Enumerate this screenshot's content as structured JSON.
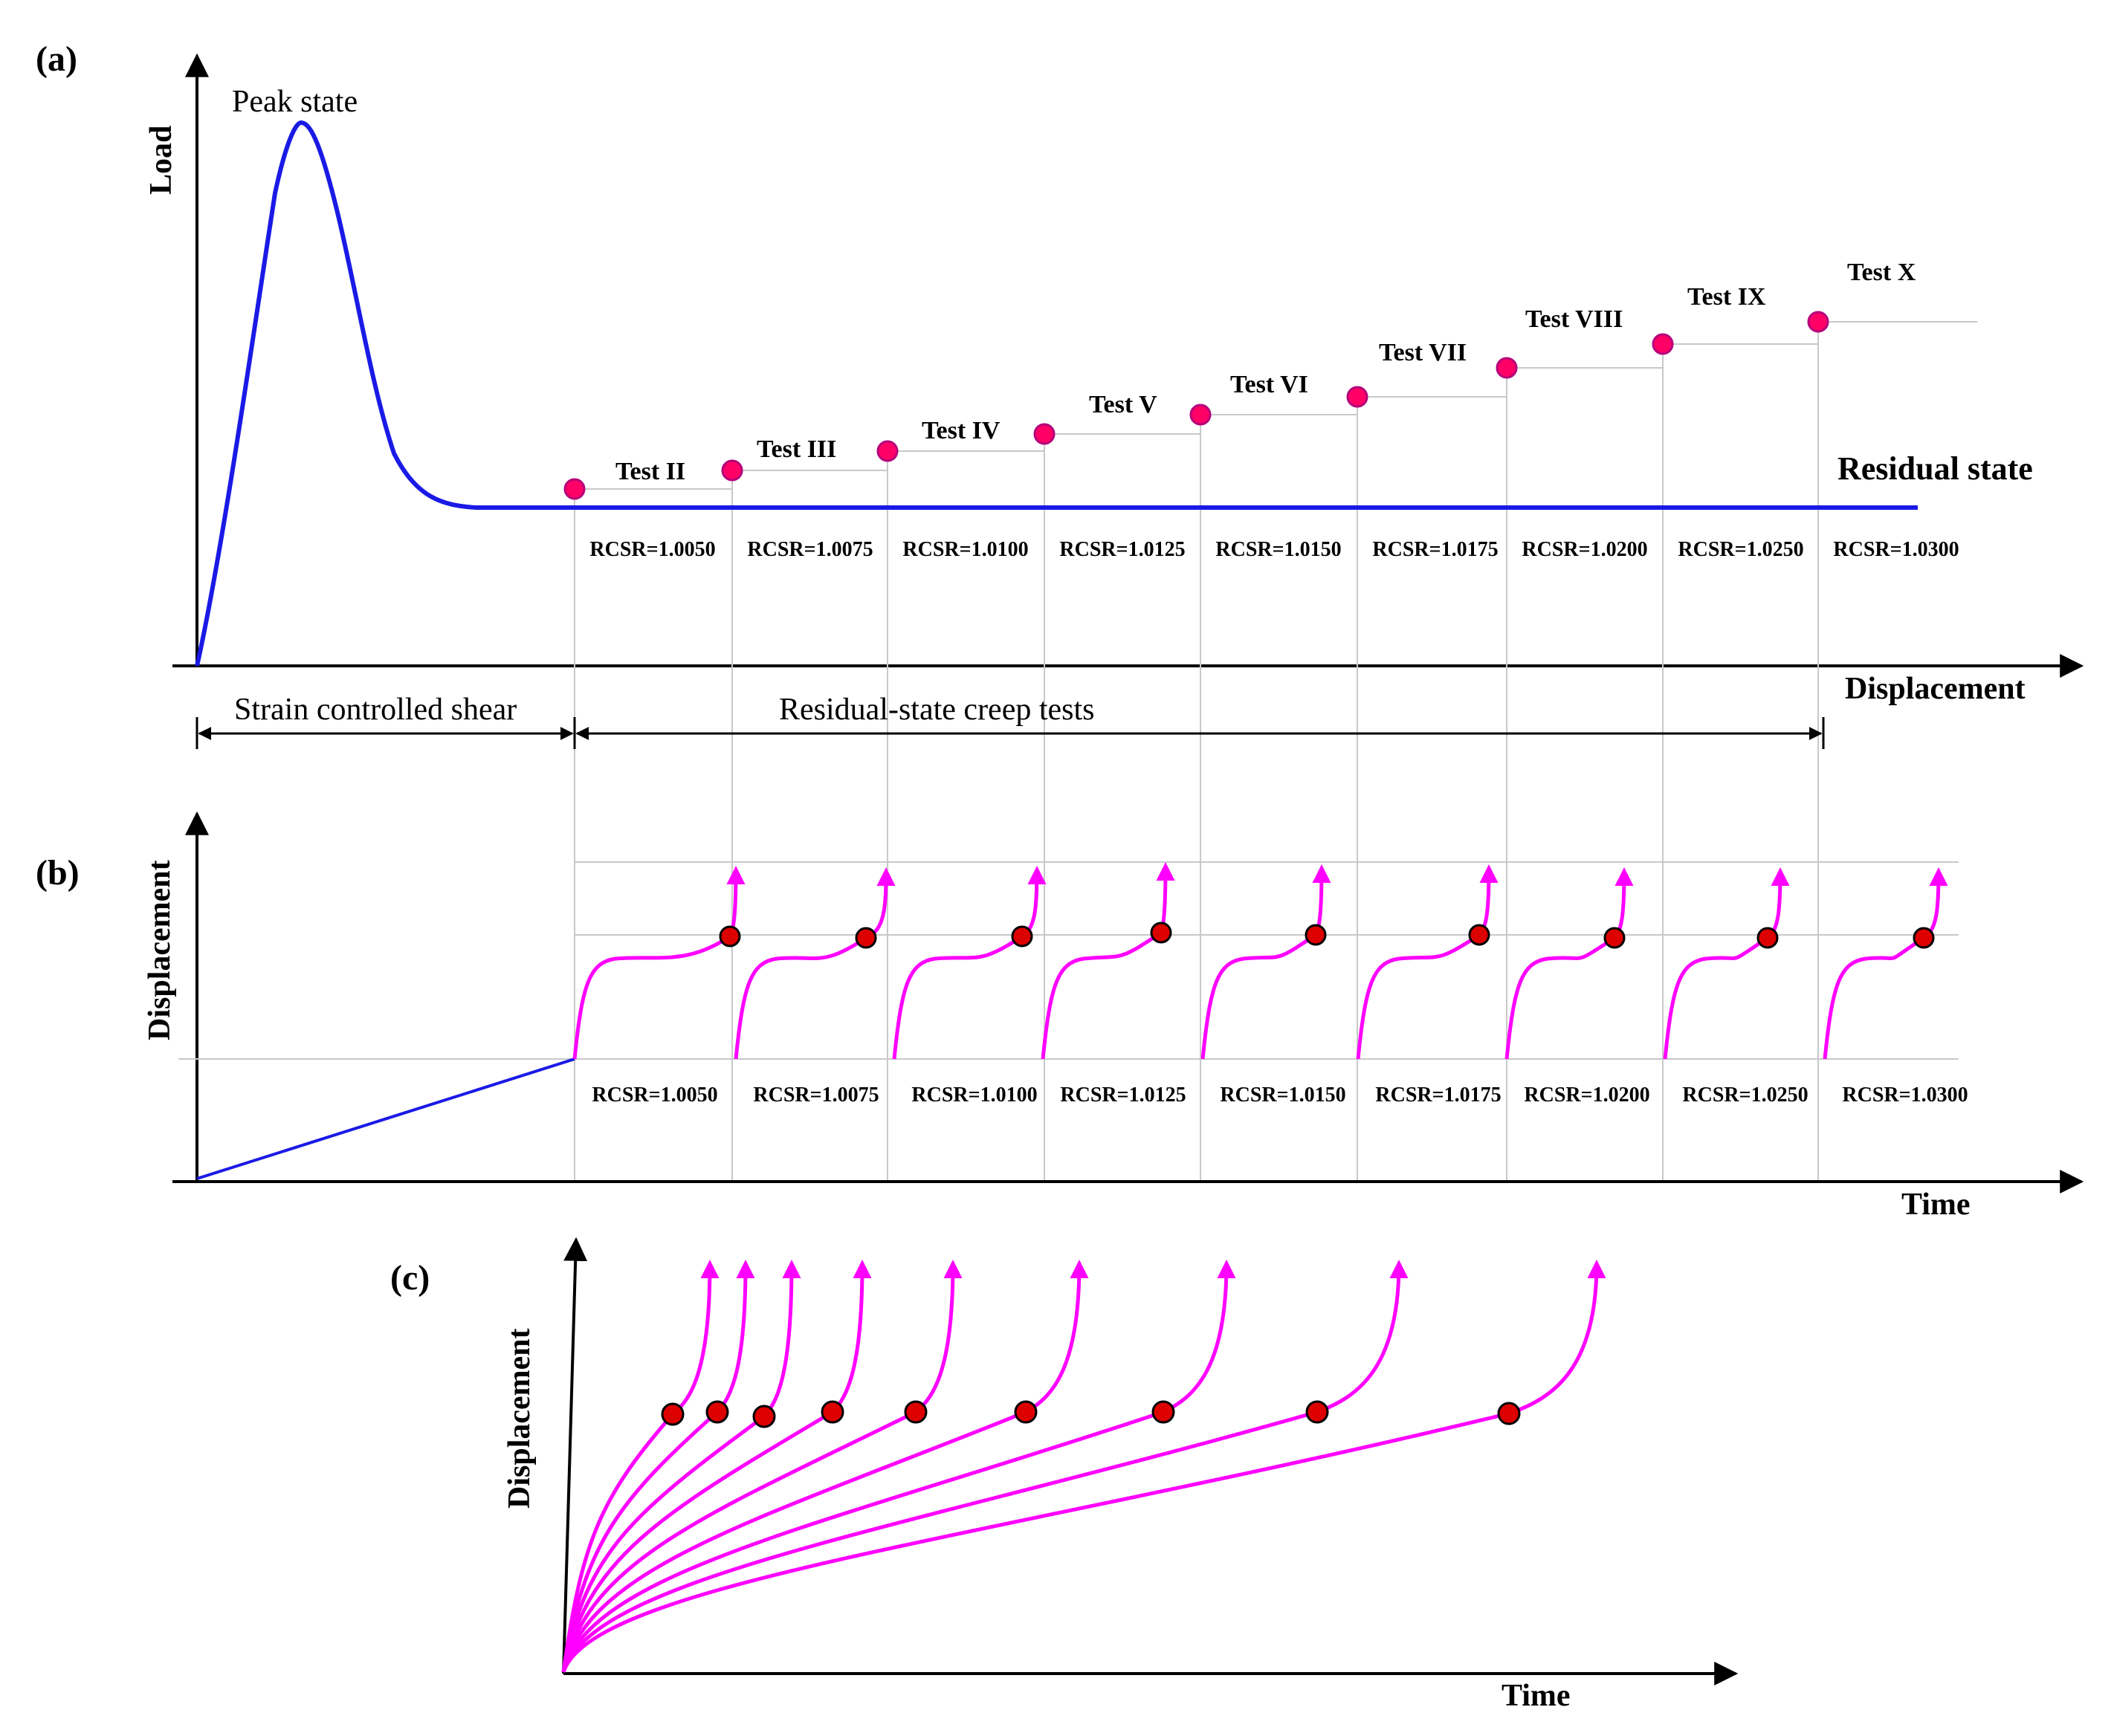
{
  "panels": {
    "a": {
      "label": "(a)",
      "y_axis_title": "Load",
      "x_axis_title": "Displacement",
      "peak_label": "Peak state",
      "residual_label": "Residual state",
      "tests": [
        "Test II",
        "Test III",
        "Test IV",
        "Test V",
        "Test VI",
        "Test VII",
        "Test VIII",
        "Test IX",
        "Test X"
      ],
      "rcsr": [
        "RCSR=1.0050",
        "RCSR=1.0075",
        "RCSR=1.0100",
        "RCSR=1.0125",
        "RCSR=1.0150",
        "RCSR=1.0175",
        "RCSR=1.0200",
        "RCSR=1.0250",
        "RCSR=1.0300"
      ],
      "phase_shear": "Strain controlled shear",
      "phase_creep": "Residual-state creep tests"
    },
    "b": {
      "label": "(b)",
      "y_axis_title": "Displacement",
      "x_axis_title": "Time",
      "rcsr": [
        "RCSR=1.0050",
        "RCSR=1.0075",
        "RCSR=1.0100",
        "RCSR=1.0125",
        "RCSR=1.0150",
        "RCSR=1.0175",
        "RCSR=1.0200",
        "RCSR=1.0250",
        "RCSR=1.0300"
      ]
    },
    "c": {
      "label": "(c)",
      "y_axis_title": "Displacement",
      "x_axis_title": "Time"
    }
  },
  "colors": {
    "blue_curve": "#1a1ae6",
    "magenta": "#ff00ff",
    "point_fill_a": "#ff0066",
    "point_fill_bc": "#dd0000",
    "grid": "#c8c8c8"
  }
}
